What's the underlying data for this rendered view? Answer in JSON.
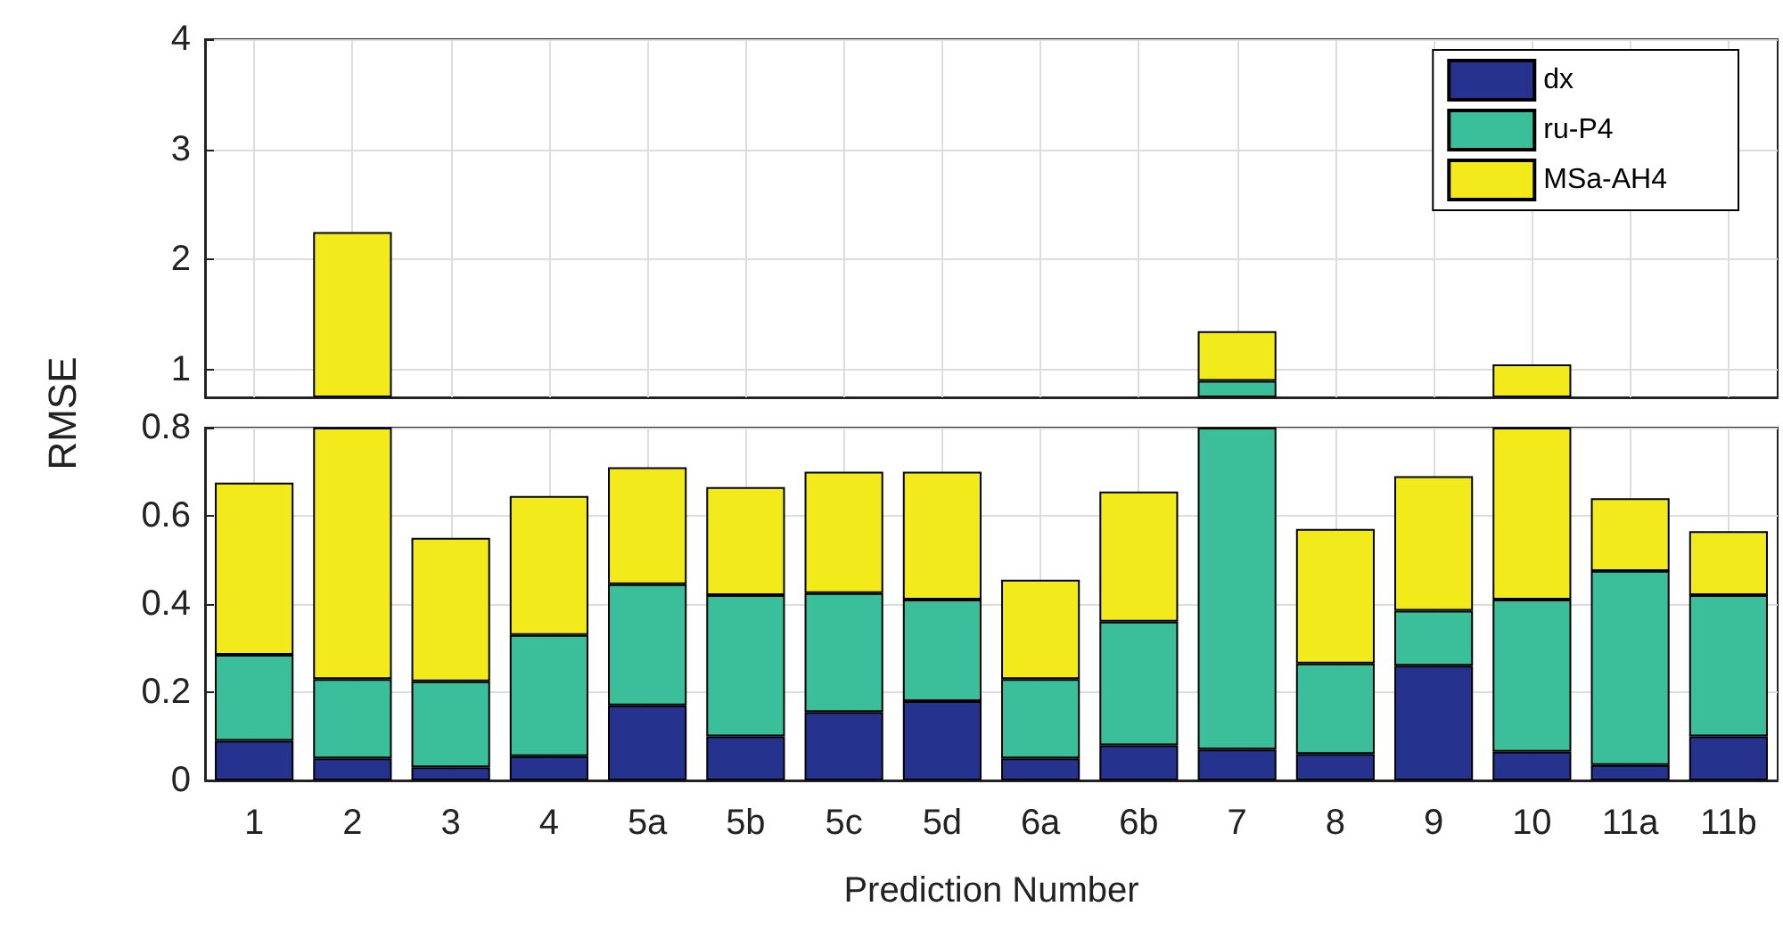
{
  "chart_data": [
    {
      "type": "bar",
      "stacked": false,
      "ylabel": "RMSE",
      "categories": [
        null,
        null,
        null,
        null,
        null,
        null,
        null,
        null,
        null,
        null,
        null,
        null,
        null,
        null,
        null,
        null
      ],
      "series": [
        {
          "name": "dx",
          "color": "#25338f",
          "values": [
            null,
            null,
            null,
            null,
            null,
            null,
            null,
            null,
            null,
            null,
            null,
            null,
            null,
            null,
            null,
            null
          ],
          "base": [
            null,
            null,
            null,
            null,
            null,
            null,
            null,
            null,
            null,
            null,
            null,
            null,
            null,
            null,
            null,
            null
          ]
        },
        {
          "name": "ru-P4",
          "color": "#3bbf9b",
          "values": [
            null,
            null,
            null,
            null,
            null,
            null,
            null,
            null,
            null,
            null,
            0.15,
            null,
            null,
            null,
            null,
            null
          ],
          "base": [
            null,
            null,
            null,
            null,
            null,
            null,
            null,
            null,
            null,
            null,
            0.75,
            null,
            null,
            null,
            null,
            null
          ]
        },
        {
          "name": "MSa-AH4",
          "color": "#f2ea1a",
          "values": [
            null,
            1.5,
            null,
            null,
            null,
            null,
            null,
            null,
            null,
            null,
            0.45,
            null,
            null,
            0.3,
            null,
            null
          ],
          "base": [
            null,
            0.75,
            null,
            null,
            null,
            null,
            null,
            null,
            null,
            null,
            0.9,
            null,
            null,
            0.75,
            null,
            null
          ]
        }
      ],
      "ylim": [
        0.75,
        4
      ],
      "yticks": [
        1,
        2,
        3,
        4
      ],
      "grid": true,
      "legend": "top right",
      "tick_labels": "y"
    },
    {
      "type": "bar",
      "stacked": true,
      "xlabel": "Prediction Number",
      "categories": [
        "1",
        "2",
        "3",
        "4",
        "5a",
        "5b",
        "5c",
        "5d",
        "6a",
        "6b",
        "7",
        "8",
        "9",
        "10",
        "11a",
        "11b"
      ],
      "series": [
        {
          "color": "#25338f",
          "values": [
            0.09,
            0.05,
            0.03,
            0.055,
            0.17,
            0.1,
            0.155,
            0.18,
            0.05,
            0.08,
            0.07,
            0.06,
            0.26,
            0.065,
            0.035,
            0.1
          ]
        },
        {
          "color": "#3bbf9b",
          "values": [
            0.195,
            0.18,
            0.195,
            0.275,
            0.275,
            0.32,
            0.27,
            0.23,
            0.18,
            0.28,
            0.73,
            0.205,
            0.125,
            0.345,
            0.44,
            0.32
          ]
        },
        {
          "color": "#f2ea1a",
          "values": [
            0.39,
            0.57,
            0.325,
            0.315,
            0.265,
            0.245,
            0.275,
            0.29,
            0.225,
            0.295,
            null,
            0.305,
            0.305,
            0.39,
            0.165,
            0.145
          ]
        }
      ],
      "ylim": [
        0,
        0.8
      ],
      "yticks": [
        0,
        0.2,
        0.4,
        0.6,
        0.8
      ],
      "grid": true,
      "legend": false
    }
  ]
}
